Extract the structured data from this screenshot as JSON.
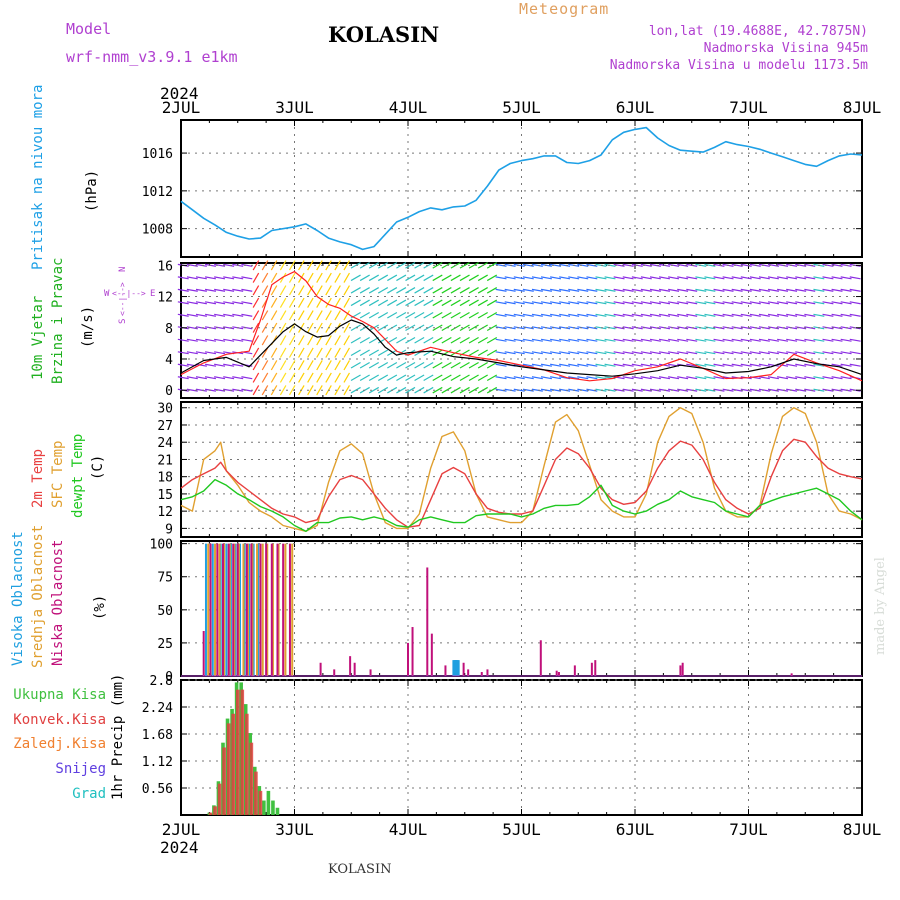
{
  "header": {
    "model_label": "Model",
    "model_name": "wrf-nmm_v3.9.1 e1km",
    "station": "KOLASIN",
    "meteogram": "Meteogram",
    "lonlat": "lon,lat (19.4688E, 42.7875N)",
    "altitude": "Nadmorska Visina 945m",
    "model_altitude": "Nadmorska Visina u modelu 1173.5m",
    "year_top": "2024",
    "year_bottom": "2024",
    "footer_station": "KOLASIN",
    "credit": "made by Angel"
  },
  "colors": {
    "pressure": "#1ea0e6",
    "temp2m": "#e84040",
    "sfc": "#e0a030",
    "dewpt": "#20c820",
    "high_cloud": "#20a0e0",
    "mid_cloud": "#e0a030",
    "low_cloud": "#c0107a",
    "precip_total": "#40c040",
    "precip_conv": "#e04040",
    "freezing": "#f08030",
    "snow": "#6040e0",
    "hail": "#20c0c0"
  },
  "x_axis": {
    "ticks": [
      "2JUL",
      "3JUL",
      "4JUL",
      "5JUL",
      "6JUL",
      "7JUL",
      "8JUL"
    ]
  },
  "panel_labels": {
    "pressure": [
      "Pritisak na nivou mora"
    ],
    "pressure_unit": "(hPa)",
    "wind": [
      "10m Vjetar",
      "Brzina i Pravac"
    ],
    "wind_unit": "(m/s)",
    "wind_compass": [
      "W",
      "<--|-->",
      "E",
      "S",
      "<--|-->",
      "N"
    ],
    "temp": [
      "2m Temp",
      "SFC Temp",
      "dewpt Temp"
    ],
    "temp_unit": "(C)",
    "cloud": [
      "Visoka Oblacnost",
      "Srednja Oblacnost",
      "Niska Oblacnost"
    ],
    "cloud_unit": "(%)",
    "precip": [
      "Ukupna Kisa",
      "Konvek.Kisa",
      "Zaledj.Kisa",
      "Snijeg",
      "Grad"
    ],
    "precip_unit": "1hr Precip (mm)"
  },
  "chart_data": [
    {
      "type": "line",
      "panel": "pressure",
      "ylabel": "(hPa)",
      "yticks": [
        1008,
        1012,
        1016
      ],
      "ylim": [
        1005,
        1019.5
      ],
      "series": [
        {
          "name": "Pritisak na nivou mora",
          "x_days": [
            2.0,
            2.1,
            2.2,
            2.3,
            2.4,
            2.5,
            2.6,
            2.7,
            2.8,
            3.0,
            3.1,
            3.2,
            3.3,
            3.4,
            3.5,
            3.6,
            3.7,
            3.8,
            3.9,
            4.0,
            4.1,
            4.2,
            4.3,
            4.4,
            4.5,
            4.6,
            4.7,
            4.8,
            4.9,
            5.0,
            5.1,
            5.2,
            5.3,
            5.4,
            5.5,
            5.6,
            5.7,
            5.8,
            5.9,
            6.0,
            6.1,
            6.2,
            6.3,
            6.4,
            6.5,
            6.6,
            6.7,
            6.8,
            6.9,
            7.0,
            7.1,
            7.2,
            7.3,
            7.4,
            7.5,
            7.6,
            7.7,
            7.8,
            7.9,
            8.0
          ],
          "values": [
            1010.9,
            1010.0,
            1009.1,
            1008.4,
            1007.6,
            1007.2,
            1006.9,
            1007.0,
            1007.8,
            1008.2,
            1008.5,
            1007.8,
            1007.0,
            1006.6,
            1006.3,
            1005.8,
            1006.1,
            1007.4,
            1008.7,
            1009.2,
            1009.8,
            1010.2,
            1010.0,
            1010.3,
            1010.4,
            1011.0,
            1012.5,
            1014.2,
            1014.9,
            1015.2,
            1015.4,
            1015.7,
            1015.7,
            1015.0,
            1014.9,
            1015.2,
            1015.8,
            1017.4,
            1018.2,
            1018.5,
            1018.7,
            1017.6,
            1016.8,
            1016.3,
            1016.2,
            1016.1,
            1016.6,
            1017.2,
            1016.9,
            1016.7,
            1016.4,
            1016.0,
            1015.6,
            1015.2,
            1014.8,
            1014.6,
            1015.2,
            1015.7,
            1015.9,
            1015.8
          ]
        }
      ]
    },
    {
      "type": "line",
      "panel": "wind",
      "ylabel": "(m/s)",
      "yticks": [
        0,
        4,
        8,
        12,
        16
      ],
      "ylim": [
        -1,
        16.3
      ],
      "series": [
        {
          "name": "10m Vjetar Brzina",
          "x_days": [
            2.0,
            2.2,
            2.4,
            2.6,
            2.7,
            2.8,
            2.9,
            3.0,
            3.1,
            3.2,
            3.3,
            3.4,
            3.5,
            3.6,
            3.7,
            3.8,
            3.9,
            4.0,
            4.2,
            4.4,
            4.6,
            4.8,
            5.0,
            5.2,
            5.4,
            5.6,
            5.8,
            6.0,
            6.2,
            6.4,
            6.6,
            6.8,
            7.0,
            7.2,
            7.4,
            7.6,
            7.8,
            8.0
          ],
          "values": [
            2.2,
            3.8,
            4.2,
            3.0,
            4.5,
            6.0,
            7.5,
            8.5,
            7.5,
            6.8,
            7.0,
            8.2,
            9.0,
            8.5,
            7.2,
            5.5,
            4.5,
            4.8,
            5.0,
            4.3,
            4.0,
            3.5,
            3.0,
            2.6,
            2.2,
            2.0,
            1.8,
            2.1,
            2.5,
            3.2,
            2.8,
            2.2,
            2.4,
            3.0,
            4.0,
            3.4,
            3.0,
            2.0
          ]
        },
        {
          "name": "10m Vjetar Udari",
          "x_days": [
            2.0,
            2.2,
            2.4,
            2.6,
            2.7,
            2.8,
            2.9,
            3.0,
            3.1,
            3.2,
            3.3,
            3.4,
            3.5,
            3.6,
            3.7,
            3.8,
            3.9,
            4.0,
            4.2,
            4.4,
            4.6,
            4.8,
            5.0,
            5.2,
            5.4,
            5.6,
            5.8,
            6.0,
            6.2,
            6.4,
            6.6,
            6.8,
            7.0,
            7.2,
            7.4,
            7.6,
            7.8,
            8.0
          ],
          "values": [
            2.0,
            3.5,
            4.6,
            5.0,
            9.0,
            13.5,
            14.5,
            15.2,
            14.0,
            12.0,
            11.0,
            10.5,
            9.5,
            8.8,
            8.0,
            6.5,
            5.0,
            4.5,
            5.5,
            4.8,
            4.2,
            3.8,
            3.2,
            2.6,
            1.6,
            1.2,
            1.5,
            2.5,
            3.0,
            4.0,
            2.8,
            1.5,
            1.6,
            2.0,
            4.6,
            3.5,
            2.5,
            1.2
          ]
        }
      ],
      "arrow_colors_by_day": [
        "#8a2be2",
        "#ff3030",
        "#ffd000",
        "#30c0c0",
        "#20d020",
        "#3070ff",
        "#30c0c0",
        "#8a2be2"
      ]
    },
    {
      "type": "line",
      "panel": "temperature",
      "ylabel": "(C)",
      "yticks": [
        9,
        12,
        15,
        18,
        21,
        24,
        27,
        30
      ],
      "ylim": [
        7.5,
        31
      ],
      "series": [
        {
          "name": "2m Temp",
          "x_days": [
            2.0,
            2.1,
            2.2,
            2.3,
            2.35,
            2.4,
            2.5,
            2.6,
            2.7,
            2.8,
            2.9,
            3.0,
            3.1,
            3.2,
            3.3,
            3.4,
            3.5,
            3.6,
            3.7,
            3.8,
            3.9,
            4.0,
            4.1,
            4.2,
            4.3,
            4.4,
            4.5,
            4.6,
            4.7,
            4.8,
            4.9,
            5.0,
            5.1,
            5.2,
            5.3,
            5.4,
            5.5,
            5.6,
            5.7,
            5.8,
            5.9,
            6.0,
            6.1,
            6.2,
            6.3,
            6.4,
            6.5,
            6.6,
            6.7,
            6.8,
            6.9,
            7.0,
            7.1,
            7.2,
            7.3,
            7.4,
            7.5,
            7.6,
            7.7,
            7.8,
            7.9,
            8.0
          ],
          "values": [
            16.0,
            17.5,
            18.5,
            19.5,
            20.5,
            19.0,
            17.0,
            15.5,
            14.0,
            12.5,
            11.5,
            11.0,
            10.0,
            10.5,
            14.5,
            17.5,
            18.2,
            17.5,
            15.0,
            12.5,
            10.5,
            9.2,
            9.5,
            14.0,
            18.5,
            19.6,
            18.5,
            15.0,
            12.5,
            11.8,
            11.5,
            11.5,
            12.0,
            16.5,
            21.0,
            23.0,
            22.0,
            19.5,
            16.0,
            14.0,
            13.2,
            13.5,
            15.5,
            19.5,
            22.5,
            24.2,
            23.5,
            21.0,
            17.0,
            14.0,
            12.5,
            11.5,
            12.5,
            18.0,
            22.5,
            24.5,
            24.0,
            21.5,
            19.5,
            18.5,
            18.0,
            17.6
          ]
        },
        {
          "name": "SFC Temp",
          "x_days": [
            2.0,
            2.1,
            2.2,
            2.3,
            2.35,
            2.4,
            2.5,
            2.6,
            2.7,
            2.8,
            2.9,
            3.0,
            3.1,
            3.2,
            3.3,
            3.4,
            3.5,
            3.6,
            3.7,
            3.8,
            3.9,
            4.0,
            4.1,
            4.2,
            4.3,
            4.4,
            4.5,
            4.6,
            4.7,
            4.8,
            4.9,
            5.0,
            5.1,
            5.2,
            5.3,
            5.4,
            5.5,
            5.6,
            5.7,
            5.8,
            5.9,
            6.0,
            6.1,
            6.2,
            6.3,
            6.4,
            6.5,
            6.6,
            6.7,
            6.8,
            6.9,
            7.0,
            7.1,
            7.2,
            7.3,
            7.4,
            7.5,
            7.6,
            7.7,
            7.8,
            7.9,
            8.0
          ],
          "values": [
            13.0,
            12.0,
            21.0,
            22.5,
            24.0,
            19.0,
            16.5,
            13.5,
            12.0,
            11.0,
            9.5,
            9.0,
            8.5,
            9.5,
            17.0,
            22.5,
            23.7,
            22.0,
            15.0,
            10.0,
            9.0,
            9.0,
            11.5,
            19.5,
            25.0,
            25.8,
            22.5,
            15.0,
            11.0,
            10.5,
            10.0,
            10.0,
            12.0,
            20.0,
            27.5,
            28.8,
            26.0,
            20.0,
            14.0,
            12.0,
            11.0,
            11.0,
            15.0,
            24.0,
            28.5,
            30.0,
            29.0,
            24.0,
            16.0,
            12.0,
            11.0,
            11.0,
            13.0,
            22.0,
            28.5,
            30.0,
            29.0,
            24.0,
            15.0,
            12.0,
            11.5,
            10.5
          ]
        },
        {
          "name": "dewpt Temp",
          "x_days": [
            2.0,
            2.1,
            2.2,
            2.3,
            2.4,
            2.5,
            2.6,
            2.7,
            2.8,
            2.9,
            3.0,
            3.1,
            3.2,
            3.3,
            3.4,
            3.5,
            3.6,
            3.7,
            3.8,
            3.9,
            4.0,
            4.1,
            4.2,
            4.3,
            4.4,
            4.5,
            4.6,
            4.7,
            4.8,
            4.9,
            5.0,
            5.1,
            5.2,
            5.3,
            5.4,
            5.5,
            5.6,
            5.7,
            5.8,
            5.9,
            6.0,
            6.1,
            6.2,
            6.3,
            6.4,
            6.5,
            6.6,
            6.7,
            6.8,
            6.9,
            7.0,
            7.1,
            7.2,
            7.3,
            7.4,
            7.5,
            7.6,
            7.7,
            7.8,
            7.9,
            8.0
          ],
          "values": [
            14.0,
            14.5,
            15.5,
            17.5,
            16.5,
            15.0,
            14.0,
            12.8,
            12.0,
            11.0,
            9.5,
            8.5,
            10.0,
            10.0,
            10.8,
            11.0,
            10.5,
            11.0,
            10.5,
            9.5,
            9.2,
            10.5,
            11.0,
            10.5,
            10.0,
            10.0,
            11.2,
            11.5,
            11.5,
            11.5,
            11.0,
            11.5,
            12.5,
            13.0,
            13.0,
            13.2,
            14.5,
            16.5,
            13.0,
            12.0,
            11.5,
            12.0,
            13.2,
            14.0,
            15.5,
            14.5,
            14.0,
            13.5,
            12.0,
            11.5,
            11.0,
            13.0,
            13.8,
            14.5,
            15.0,
            15.5,
            16.0,
            15.0,
            14.0,
            12.0,
            10.5
          ]
        }
      ]
    },
    {
      "type": "bar",
      "panel": "cloud",
      "ylabel": "(%)",
      "yticks": [
        0,
        25,
        50,
        75,
        100
      ],
      "ylim": [
        0,
        102
      ],
      "series": [
        {
          "name": "Visoka Oblacnost",
          "x_days": [
            2.22,
            2.28,
            2.35,
            2.4,
            2.44,
            2.48,
            2.52,
            2.56,
            2.6,
            2.64,
            2.68,
            4.4,
            4.41,
            4.42
          ],
          "values": [
            100,
            100,
            100,
            100,
            100,
            100,
            100,
            100,
            100,
            100,
            100,
            12,
            12,
            12
          ]
        },
        {
          "name": "Srednja Oblacnost",
          "x_days": [
            2.24,
            2.3,
            2.34,
            2.38,
            2.43,
            2.47,
            2.51,
            2.55,
            2.59,
            2.63,
            2.67,
            2.72,
            2.76,
            2.81,
            2.86,
            2.92,
            2.98
          ],
          "values": [
            100,
            100,
            100,
            100,
            100,
            100,
            100,
            100,
            100,
            100,
            100,
            100,
            100,
            100,
            100,
            100,
            100
          ]
        },
        {
          "name": "Niska Oblacnost",
          "x_days": [
            2.2,
            2.26,
            2.32,
            2.37,
            2.42,
            2.46,
            2.5,
            2.58,
            2.62,
            2.7,
            2.75,
            2.8,
            2.85,
            2.9,
            2.96,
            3.23,
            3.35,
            3.49,
            3.53,
            3.67,
            4.0,
            4.04,
            4.17,
            4.21,
            4.33,
            4.49,
            4.53,
            4.65,
            4.7,
            5.17,
            5.31,
            5.33,
            5.47,
            5.62,
            5.65,
            6.4,
            6.42,
            7.38
          ],
          "values": [
            34,
            100,
            100,
            100,
            100,
            100,
            100,
            100,
            100,
            100,
            100,
            100,
            100,
            100,
            100,
            10,
            5,
            15,
            10,
            5,
            25,
            37,
            82,
            32,
            8,
            10,
            5,
            3,
            5,
            27,
            4,
            3,
            8,
            10,
            12,
            8,
            10,
            2
          ]
        }
      ]
    },
    {
      "type": "bar",
      "panel": "precip",
      "ylabel": "1hr Precip (mm)",
      "yticks": [
        0.56,
        1.12,
        1.68,
        2.24,
        2.8
      ],
      "ylim": [
        0,
        2.8
      ],
      "series": [
        {
          "name": "Ukupna Kisa",
          "x_days": [
            2.25,
            2.29,
            2.33,
            2.37,
            2.41,
            2.45,
            2.49,
            2.53,
            2.57,
            2.61,
            2.65,
            2.69,
            2.73,
            2.77,
            2.81,
            2.85
          ],
          "values": [
            0.05,
            0.2,
            0.7,
            1.5,
            2.0,
            2.2,
            2.75,
            2.75,
            2.3,
            1.7,
            1.0,
            0.6,
            0.3,
            0.5,
            0.3,
            0.15
          ]
        },
        {
          "name": "Konvek.Kisa",
          "x_days": [
            2.26,
            2.3,
            2.34,
            2.38,
            2.42,
            2.46,
            2.5,
            2.54,
            2.58,
            2.62,
            2.66,
            2.7
          ],
          "values": [
            0.05,
            0.18,
            0.65,
            1.4,
            1.9,
            2.1,
            2.6,
            2.6,
            2.1,
            1.5,
            0.9,
            0.5
          ]
        }
      ]
    }
  ]
}
